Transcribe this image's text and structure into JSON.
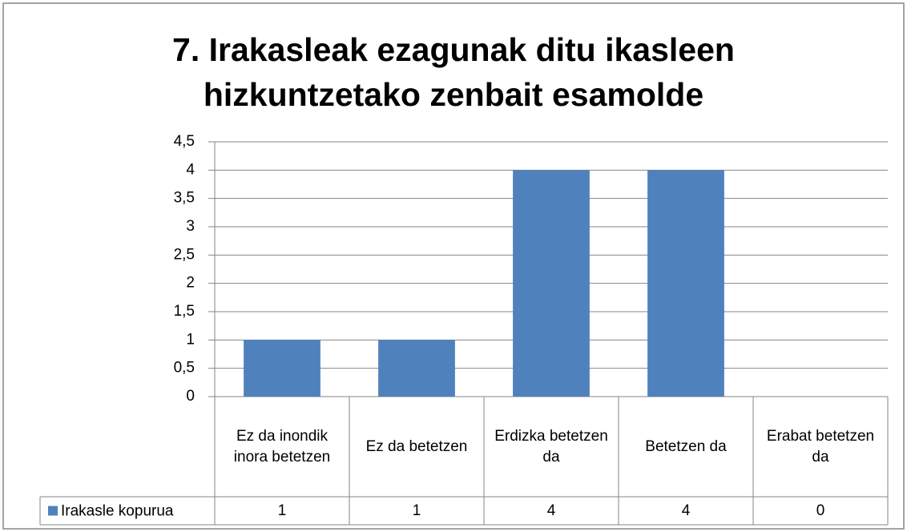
{
  "chart_data": {
    "type": "bar",
    "title": "7. Irakasleak ezagunak ditu ikasleen hizkuntzetako zenbait esamolde",
    "categories": [
      "Ez da inondik inora betetzen",
      "Ez da betetzen",
      "Erdizka betetzen da",
      "Betetzen da",
      "Erabat betetzen da"
    ],
    "series": [
      {
        "name": "Irakasle kopurua",
        "color": "#4f81bd",
        "values": [
          1,
          1,
          4,
          4,
          0
        ]
      }
    ],
    "ylim": [
      0,
      4.5
    ],
    "yticks": [
      0,
      {
        "value": 0.5,
        "label": "0,5"
      },
      1,
      {
        "value": 1.5,
        "label": "1,5"
      },
      2,
      {
        "value": 2.5,
        "label": "2,5"
      },
      3,
      {
        "value": 3.5,
        "label": "3,5"
      },
      4,
      {
        "value": 4.5,
        "label": "4,5"
      }
    ],
    "grid": true
  }
}
